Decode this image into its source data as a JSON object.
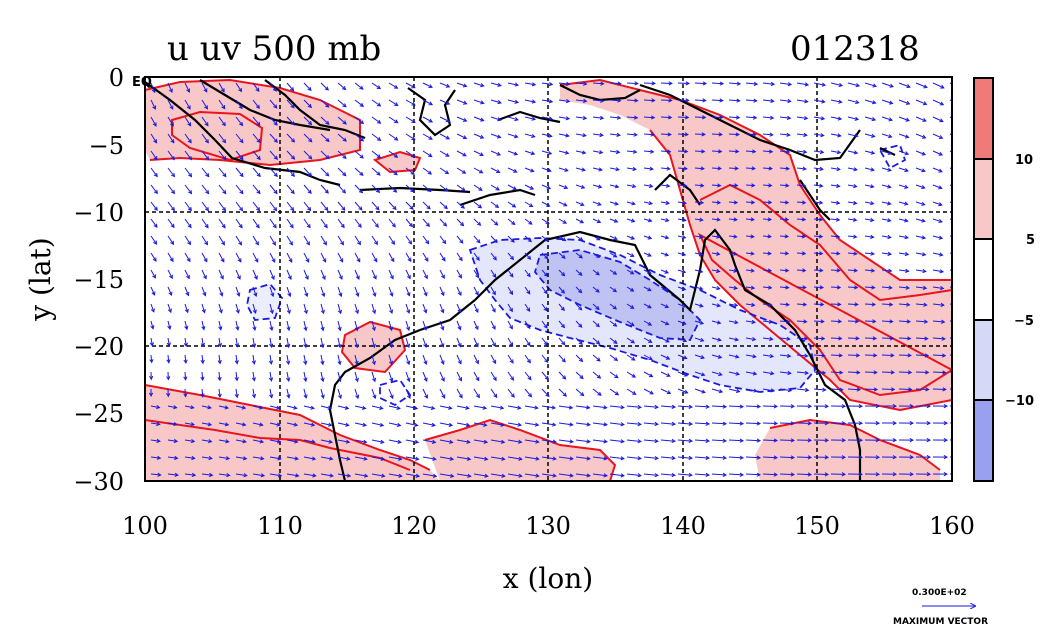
{
  "title": "u uv 500 mb",
  "stamp": "012318",
  "x_axis": {
    "label": "x (lon)",
    "ticks": [
      "100",
      "110",
      "120",
      "130",
      "140",
      "150",
      "160"
    ],
    "range": [
      100,
      160
    ]
  },
  "y_axis": {
    "label": "y (lat)",
    "ticks": [
      "0",
      "−5",
      "−10",
      "−15",
      "−20",
      "−25",
      "−30"
    ],
    "range": [
      -30,
      0
    ]
  },
  "eq_label": "EQ",
  "colorbar": {
    "labels": [
      "10",
      "5",
      "−5",
      "−10"
    ],
    "colors": [
      "#f07a78",
      "#f8c8c8",
      "#ffffff",
      "#d6d8f8",
      "#9aa0f0"
    ]
  },
  "vector_key": {
    "value": "0.300E+02",
    "caption": "MAXIMUM VECTOR"
  },
  "colors": {
    "positive_contour": "#e8141e",
    "negative_contour": "#1a1ae0",
    "coast": "#000000",
    "vector": "#1a1ae0"
  }
}
